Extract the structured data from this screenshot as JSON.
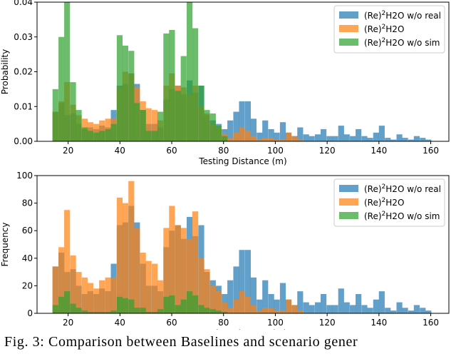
{
  "caption": "Fig. 3: Comparison between Baselines and scenario gener",
  "colors": {
    "blue": "#1f77b4",
    "orange": "#ff7f0e",
    "green": "#2ca02c"
  },
  "chart_data": [
    {
      "type": "bar",
      "title": "",
      "xlabel": "Testing Distance (m)",
      "ylabel": "Probability",
      "xlim": [
        8,
        167
      ],
      "ylim": [
        0,
        0.04
      ],
      "xticks": [
        "20",
        "40",
        "60",
        "80",
        "100",
        "120",
        "140",
        "160"
      ],
      "yticks": [
        "0.00",
        "0.01",
        "0.02",
        "0.03",
        "0.04"
      ],
      "legend": {
        "placement": "top-right",
        "entries": [
          "(Re)2H2O w/o real",
          "(Re)2H2O",
          "(Re)2H2O w/o sim"
        ]
      },
      "bin_width": 2.25,
      "series": [
        {
          "name": "(Re)2H2O w/o real",
          "color": "blue",
          "x": [
            15.1,
            17.4,
            19.6,
            21.9,
            24.1,
            26.4,
            28.6,
            30.9,
            33.1,
            35.4,
            37.6,
            39.9,
            42.1,
            44.4,
            46.6,
            48.9,
            51.1,
            53.4,
            55.6,
            57.9,
            60.1,
            62.4,
            64.6,
            66.9,
            69.1,
            71.4,
            73.6,
            75.9,
            78.1,
            80.4,
            82.6,
            84.9,
            87.1,
            89.4,
            91.6,
            93.9,
            96.1,
            98.4,
            100.6,
            102.9,
            105.1,
            107.4,
            109.6,
            111.9,
            114.1,
            116.4,
            118.6,
            120.9,
            123.1,
            125.4,
            127.6,
            129.9,
            132.1,
            134.4,
            136.6,
            138.9,
            141.1,
            143.4,
            145.6,
            147.9,
            150.1,
            152.4,
            154.6,
            156.9,
            159.1
          ],
          "values": [
            0.0085,
            0.011,
            0.0075,
            0.008,
            0.005,
            0.0035,
            0.004,
            0.0035,
            0.0045,
            0.004,
            0.009,
            0.016,
            0.0165,
            0.0195,
            0.0165,
            0.009,
            0.005,
            0.005,
            0.004,
            0.012,
            0.015,
            0.016,
            0.0135,
            0.0175,
            0.014,
            0.016,
            0.0075,
            0.006,
            0.005,
            0.0035,
            0.006,
            0.0085,
            0.0115,
            0.0115,
            0.0065,
            0.0025,
            0.006,
            0.0035,
            0.0025,
            0.0055,
            0.0025,
            0.0015,
            0.004,
            0.002,
            0.0015,
            0.002,
            0.0035,
            0.0015,
            0.0015,
            0.0045,
            0.002,
            0.0015,
            0.0035,
            0.0015,
            0.001,
            0.0025,
            0.0045,
            0.001,
            0.0005,
            0.002,
            0.001,
            0.0005,
            0.0015,
            0.001,
            0.0005
          ]
        },
        {
          "name": "(Re)2H2O",
          "color": "orange",
          "x": [
            15.1,
            17.4,
            19.6,
            21.9,
            24.1,
            26.4,
            28.6,
            30.9,
            33.1,
            35.4,
            37.6,
            39.9,
            42.1,
            44.4,
            46.6,
            48.9,
            51.1,
            53.4,
            55.6,
            57.9,
            60.1,
            62.4,
            64.6,
            66.9,
            69.1,
            71.4,
            73.6,
            75.9,
            78.1,
            80.4,
            82.6,
            84.9,
            87.1,
            89.4,
            91.6,
            93.9,
            96.1,
            98.4,
            100.6,
            102.9,
            105.1,
            107.4,
            109.6
          ],
          "values": [
            0.0085,
            0.0115,
            0.017,
            0.0105,
            0.0075,
            0.0065,
            0.0055,
            0.005,
            0.006,
            0.0065,
            0.0065,
            0.0155,
            0.02,
            0.0195,
            0.0155,
            0.0115,
            0.0095,
            0.009,
            0.006,
            0.016,
            0.0195,
            0.016,
            0.0155,
            0.0135,
            0.016,
            0.01,
            0.008,
            0.005,
            0.004,
            0.002,
            0.001,
            0.0025,
            0.004,
            0.003,
            0.0015,
            0.0005,
            0.001,
            0.001,
            0.0005,
            0.0005,
            0.0025,
            0.0015,
            0.0005
          ]
        },
        {
          "name": "(Re)2H2O w/o sim",
          "color": "green",
          "x": [
            15.1,
            17.4,
            19.6,
            21.9,
            24.1,
            26.4,
            28.6,
            30.9,
            33.1,
            35.4,
            37.6,
            39.9,
            42.1,
            44.4,
            46.6,
            48.9,
            51.1,
            53.4,
            55.6,
            57.9,
            60.1,
            62.4,
            64.6,
            66.9,
            69.1,
            71.4,
            73.6,
            75.9,
            78.1,
            80.4
          ],
          "values": [
            0.015,
            0.03,
            0.04,
            0.017,
            0.009,
            0.004,
            0.003,
            0.0025,
            0.003,
            0.0035,
            0.005,
            0.0305,
            0.0275,
            0.026,
            0.011,
            0.009,
            0.003,
            0.003,
            0.0085,
            0.031,
            0.032,
            0.0145,
            0.0245,
            0.04,
            0.0325,
            0.016,
            0.009,
            0.008,
            0.0045,
            0.0015
          ]
        }
      ]
    },
    {
      "type": "bar",
      "title": "",
      "xlabel": "Testing Distance (m)",
      "ylabel": "Frequency",
      "xlim": [
        8,
        167
      ],
      "ylim": [
        0,
        100
      ],
      "xticks": [
        "20",
        "40",
        "60",
        "80",
        "100",
        "120",
        "140",
        "160"
      ],
      "yticks": [
        "0",
        "20",
        "40",
        "60",
        "80",
        "100"
      ],
      "legend": {
        "placement": "top-right",
        "entries": [
          "(Re)2H2O w/o real",
          "(Re)2H2O",
          "(Re)2H2O w/o sim"
        ]
      },
      "bin_width": 2.25,
      "series": [
        {
          "name": "(Re)2H2O w/o real",
          "color": "blue",
          "x": [
            15.1,
            17.4,
            19.6,
            21.9,
            24.1,
            26.4,
            28.6,
            30.9,
            33.1,
            35.4,
            37.6,
            39.9,
            42.1,
            44.4,
            46.6,
            48.9,
            51.1,
            53.4,
            55.6,
            57.9,
            60.1,
            62.4,
            64.6,
            66.9,
            69.1,
            71.4,
            73.6,
            75.9,
            78.1,
            80.4,
            82.6,
            84.9,
            87.1,
            89.4,
            91.6,
            93.9,
            96.1,
            98.4,
            100.6,
            102.9,
            105.1,
            107.4,
            109.6,
            111.9,
            114.1,
            116.4,
            118.6,
            120.9,
            123.1,
            125.4,
            127.6,
            129.9,
            132.1,
            134.4,
            136.6,
            138.9,
            141.1,
            143.4,
            145.6,
            147.9,
            150.1,
            152.4,
            154.6,
            156.9,
            159.1
          ],
          "values": [
            34,
            44,
            30,
            32,
            20,
            14,
            16,
            14,
            18,
            16,
            36,
            64,
            66,
            78,
            66,
            36,
            20,
            20,
            16,
            48,
            60,
            64,
            54,
            70,
            56,
            64,
            30,
            24,
            20,
            14,
            24,
            34,
            46,
            46,
            26,
            10,
            24,
            14,
            10,
            22,
            10,
            6,
            16,
            8,
            6,
            8,
            14,
            6,
            6,
            18,
            8,
            6,
            14,
            6,
            4,
            10,
            16,
            4,
            2,
            8,
            4,
            2,
            6,
            4,
            2
          ]
        },
        {
          "name": "(Re)2H2O",
          "color": "orange",
          "x": [
            15.1,
            17.4,
            19.6,
            21.9,
            24.1,
            26.4,
            28.6,
            30.9,
            33.1,
            35.4,
            37.6,
            39.9,
            42.1,
            44.4,
            46.6,
            48.9,
            51.1,
            53.4,
            55.6,
            57.9,
            60.1,
            62.4,
            64.6,
            66.9,
            69.1,
            71.4,
            73.6,
            75.9,
            78.1,
            80.4,
            82.6,
            84.9,
            87.1,
            89.4,
            91.6,
            93.9,
            96.1,
            98.4,
            100.6,
            102.9,
            105.1,
            107.4,
            109.6
          ],
          "values": [
            34,
            48,
            75,
            42,
            30,
            26,
            22,
            18,
            24,
            26,
            26,
            84,
            80,
            96,
            62,
            44,
            38,
            36,
            24,
            62,
            78,
            64,
            62,
            54,
            74,
            40,
            32,
            20,
            16,
            8,
            4,
            10,
            16,
            12,
            6,
            2,
            4,
            4,
            2,
            2,
            10,
            6,
            2
          ]
        },
        {
          "name": "(Re)2H2O w/o sim",
          "color": "green",
          "x": [
            15.1,
            17.4,
            19.6,
            21.9,
            24.1,
            26.4,
            28.6,
            30.9,
            33.1,
            35.4,
            37.6,
            39.9,
            42.1,
            44.4,
            46.6,
            48.9,
            51.1,
            53.4,
            55.6,
            57.9,
            60.1,
            62.4,
            64.6,
            66.9,
            69.1,
            71.4,
            73.6,
            75.9,
            78.1,
            80.4
          ],
          "values": [
            6,
            12,
            16,
            7,
            4,
            2,
            1,
            1,
            1,
            1,
            2,
            12,
            11,
            10,
            4,
            4,
            1,
            1,
            3,
            12,
            13,
            6,
            10,
            16,
            13,
            6,
            4,
            3,
            2,
            1
          ]
        }
      ]
    }
  ]
}
